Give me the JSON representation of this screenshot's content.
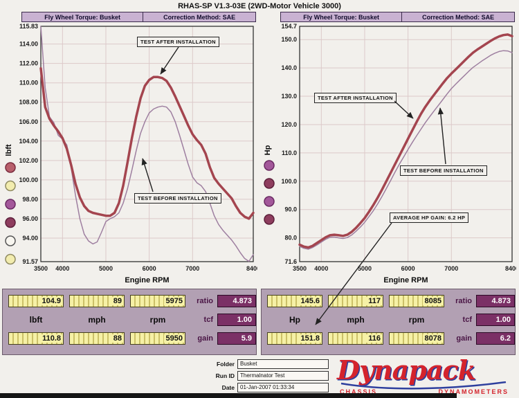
{
  "title": "RHAS-SP V1.3-03E (2WD-Motor Vehicle 3000)",
  "annotations": {
    "after": "TEST AFTER INSTALLATION",
    "before": "TEST BEFORE INSTALLATION",
    "gain": "AVERAGE HP GAIN: 6.2 HP"
  },
  "chart_data": [
    {
      "type": "line",
      "title": "Fly Wheel Torque: Busket",
      "correction": "Correction Method: SAE",
      "xlabel": "Engine RPM",
      "ylabel": "lbft",
      "xlim": [
        3500,
        8400
      ],
      "ylim": [
        91.57,
        115.83
      ],
      "xticks": [
        3500,
        4000,
        5000,
        6000,
        7000,
        8400
      ],
      "yticks": [
        115.83,
        114,
        112,
        110,
        108,
        106,
        104,
        102,
        100,
        98,
        96,
        94,
        91.57
      ],
      "ytick_labels": [
        "115.83",
        "114.00",
        "112.00",
        "110.00",
        "108.00",
        "106.00",
        "104.00",
        "102.00",
        "100.00",
        "98.00",
        "96.00",
        "94.00",
        "91.57"
      ],
      "grid": true,
      "x": [
        3500,
        3600,
        3700,
        3800,
        3900,
        4000,
        4100,
        4200,
        4300,
        4400,
        4500,
        4600,
        4700,
        4800,
        4900,
        5000,
        5100,
        5200,
        5300,
        5400,
        5500,
        5600,
        5700,
        5800,
        5900,
        6000,
        6100,
        6200,
        6300,
        6400,
        6500,
        6600,
        6700,
        6800,
        6900,
        7000,
        7100,
        7200,
        7300,
        7400,
        7500,
        7600,
        7700,
        7800,
        7900,
        8000,
        8100,
        8200,
        8300,
        8400
      ],
      "series": [
        {
          "name": "TEST AFTER INSTALLATION",
          "color": "#a4454f",
          "width": 3.5,
          "values": [
            111.5,
            107.5,
            106.3,
            105.6,
            105.0,
            104.3,
            103.2,
            101.5,
            99.6,
            98.2,
            97.3,
            96.8,
            96.6,
            96.5,
            96.4,
            96.3,
            96.3,
            96.6,
            97.6,
            99.4,
            101.8,
            104.3,
            106.5,
            108.4,
            109.7,
            110.3,
            110.6,
            110.6,
            110.5,
            110.2,
            109.5,
            108.6,
            107.6,
            106.6,
            105.6,
            104.7,
            104.1,
            103.6,
            102.7,
            101.3,
            100.2,
            99.6,
            99.1,
            98.6,
            98.1,
            97.3,
            96.6,
            96.2,
            96.0,
            96.6
          ]
        },
        {
          "name": "TEST BEFORE INSTALLATION",
          "color": "#9e7fa0",
          "width": 1.5,
          "values": [
            115.8,
            109.5,
            106.5,
            105.9,
            104.6,
            104.2,
            103.6,
            101.2,
            98.4,
            96.0,
            94.4,
            93.7,
            93.4,
            93.6,
            94.6,
            95.7,
            96.0,
            96.2,
            96.6,
            97.6,
            99.1,
            101.0,
            103.0,
            104.8,
            106.0,
            106.9,
            107.3,
            107.5,
            107.6,
            107.5,
            107.0,
            106.0,
            104.6,
            103.1,
            101.6,
            100.3,
            99.7,
            99.4,
            98.8,
            97.6,
            96.3,
            95.4,
            94.8,
            94.3,
            93.8,
            93.2,
            92.5,
            91.9,
            91.6,
            92.3
          ]
        }
      ],
      "legend_colors": [
        [
          "#b85f6b",
          "#7a2c3e"
        ],
        [
          "#f2ecae",
          "#8f8a60"
        ],
        [
          "#a3589a",
          "#6a2a62"
        ],
        [
          "#8e3d5e",
          "#5c1f3a"
        ],
        [
          "#f8f6f0",
          "#555555"
        ],
        [
          "#f2ecae",
          "#8f8a60"
        ]
      ]
    },
    {
      "type": "line",
      "title": "Fly Wheel Torque: Busket",
      "correction": "Correction Method: SAE",
      "xlabel": "Engine RPM",
      "ylabel": "Hp",
      "xlim": [
        3500,
        8400
      ],
      "ylim": [
        71.6,
        154.7
      ],
      "xticks": [
        3500,
        4000,
        5000,
        6000,
        7000,
        8400
      ],
      "yticks": [
        154.7,
        150,
        140,
        130,
        120,
        110,
        100,
        90,
        80,
        71.6
      ],
      "ytick_labels": [
        "154.7",
        "150.0",
        "140.0",
        "130.0",
        "120.0",
        "110.0",
        "100.0",
        "90.0",
        "80.0",
        "71.6"
      ],
      "grid": true,
      "x": [
        3500,
        3600,
        3700,
        3800,
        3900,
        4000,
        4100,
        4200,
        4300,
        4400,
        4500,
        4600,
        4700,
        4800,
        4900,
        5000,
        5100,
        5200,
        5300,
        5400,
        5500,
        5600,
        5700,
        5800,
        5900,
        6000,
        6100,
        6200,
        6300,
        6400,
        6500,
        6600,
        6700,
        6800,
        6900,
        7000,
        7100,
        7200,
        7300,
        7400,
        7500,
        7600,
        7700,
        7800,
        7900,
        8000,
        8100,
        8200,
        8300,
        8400
      ],
      "series": [
        {
          "name": "TEST AFTER INSTALLATION",
          "color": "#a4454f",
          "width": 3.5,
          "values": [
            77.6,
            76.9,
            76.6,
            77.2,
            78.2,
            79.2,
            80.2,
            80.9,
            81.1,
            80.9,
            80.7,
            81.1,
            82.1,
            83.5,
            85.2,
            87.0,
            89.2,
            91.6,
            94.2,
            97.0,
            100.0,
            103.0,
            106.0,
            109.0,
            112.0,
            115.0,
            118.0,
            121.0,
            123.8,
            126.3,
            128.5,
            130.5,
            132.5,
            134.5,
            136.4,
            138.0,
            139.5,
            141.0,
            142.5,
            144.0,
            145.4,
            146.5,
            147.5,
            148.5,
            149.5,
            150.4,
            151.1,
            151.6,
            151.8,
            151.2
          ]
        },
        {
          "name": "TEST BEFORE INSTALLATION",
          "color": "#9e7fa0",
          "width": 1.5,
          "values": [
            77.0,
            76.3,
            76.0,
            76.6,
            77.5,
            78.5,
            79.5,
            80.2,
            80.3,
            80.0,
            79.8,
            80.1,
            81.0,
            82.3,
            83.8,
            85.5,
            87.5,
            89.6,
            92.0,
            94.6,
            97.4,
            100.3,
            103.2,
            106.0,
            108.6,
            111.2,
            113.7,
            116.1,
            118.4,
            120.7,
            122.8,
            124.8,
            126.8,
            128.8,
            130.8,
            132.7,
            134.3,
            135.8,
            137.3,
            138.8,
            140.2,
            141.3,
            142.4,
            143.4,
            144.4,
            145.2,
            145.8,
            146.1,
            146.0,
            145.4
          ]
        }
      ],
      "legend_colors": [
        [
          "#a3589a",
          "#6a2a62"
        ],
        [
          "#8e3d5e",
          "#5c1f3a"
        ],
        [
          "#a3589a",
          "#6a2a62"
        ],
        [
          "#8e3d5e",
          "#5c1f3a"
        ]
      ]
    }
  ],
  "readouts": {
    "left": {
      "row1": [
        "104.9",
        "89",
        "5975"
      ],
      "units": [
        "lbft",
        "mph",
        "rpm"
      ],
      "row3": [
        "110.8",
        "88",
        "5950"
      ],
      "ratio_label": "ratio",
      "ratio": "4.873",
      "tcf_label": "tcf",
      "tcf": "1.00",
      "gain_label": "gain",
      "gain": "5.9"
    },
    "right": {
      "row1": [
        "145.6",
        "117",
        "8085"
      ],
      "units": [
        "Hp",
        "mph",
        "rpm"
      ],
      "row3": [
        "151.8",
        "116",
        "8078"
      ],
      "ratio_label": "ratio",
      "ratio": "4.873",
      "tcf_label": "tcf",
      "tcf": "1.00",
      "gain_label": "gain",
      "gain": "6.2"
    }
  },
  "footer": {
    "folder_label": "Folder",
    "folder_value": "Busket",
    "run_id_label": "Run ID",
    "run_id_value": "Thermalnator Test",
    "date_label": "Date",
    "date_value": "01-Jan-2007 01:33:34"
  },
  "logo": {
    "name": "Dynapack",
    "tagline_left": "CHASSIS",
    "tagline_right": "DYNAMOMETERS"
  },
  "colors": {
    "after_curve": "#a4454f",
    "before_curve": "#9e7fa0",
    "header_lavender": "#c9b2d2",
    "readout_bg": "#b2a0b3",
    "value_yellow": "#f6f1a6",
    "dark_value_box": "#7b3066",
    "logo_red": "#d4232c",
    "logo_blue": "#2e3f9e"
  }
}
